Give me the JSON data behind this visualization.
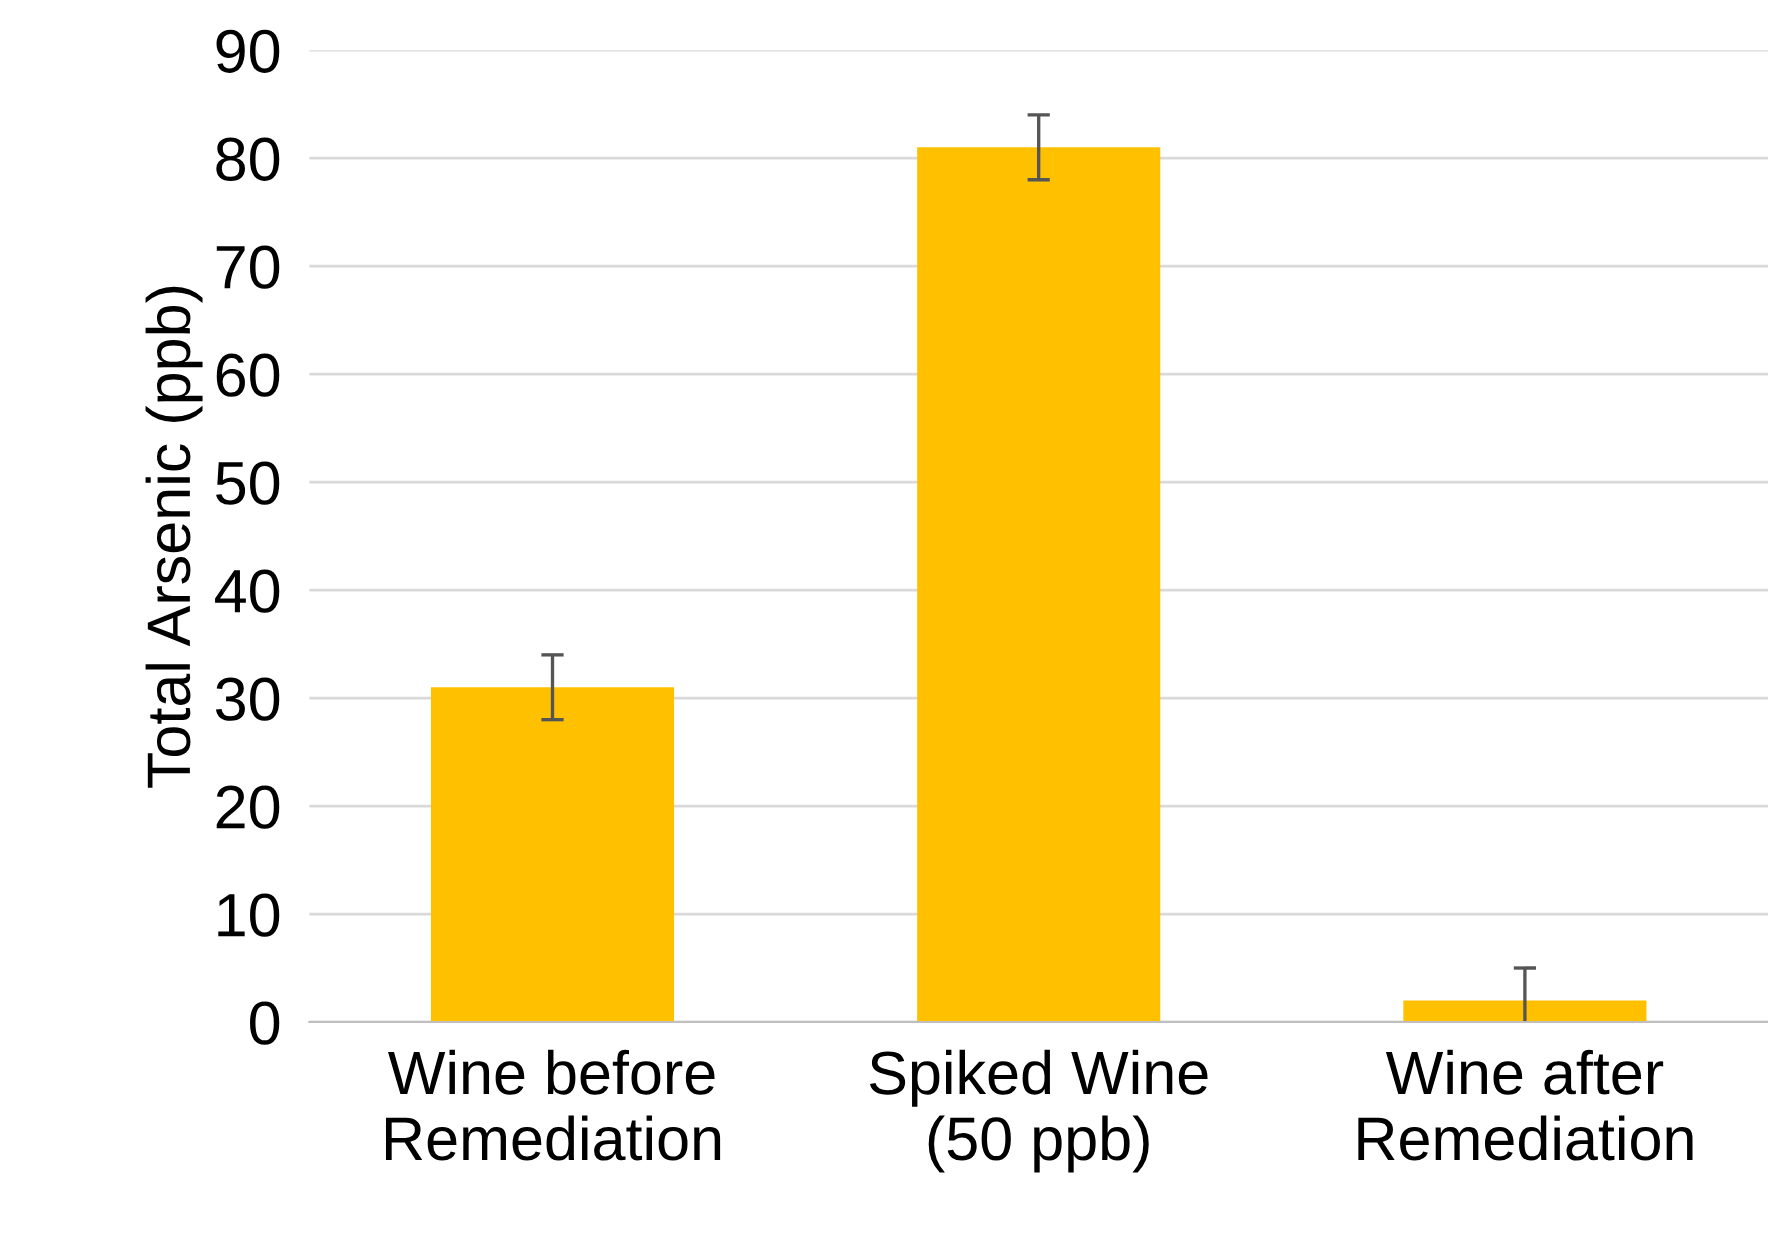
{
  "chart_data": {
    "type": "bar",
    "ylabel": "Total Arsenic (ppb)",
    "categories": [
      "Wine before\nRemediation",
      "Spiked Wine\n(50 ppb)",
      "Wine after\nRemediation"
    ],
    "values": [
      31,
      81,
      2
    ],
    "errors": [
      3,
      3,
      3
    ],
    "color": "#ffc000",
    "ylim": [
      0,
      90
    ],
    "yticks": [
      0,
      10,
      20,
      30,
      40,
      50,
      60,
      70,
      80,
      90
    ],
    "grid": "y"
  }
}
